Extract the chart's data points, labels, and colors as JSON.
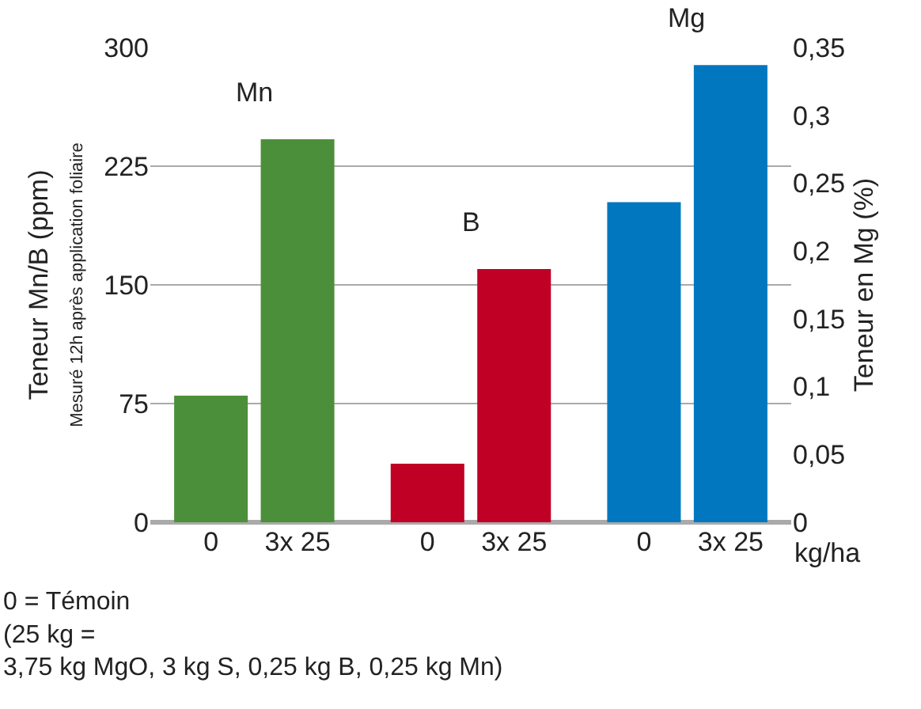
{
  "chart_data": {
    "type": "bar",
    "categories": [
      "0",
      "3x 25",
      "0",
      "3x 25",
      "0",
      "3x 25"
    ],
    "series": [
      {
        "name": "Mn",
        "color": "#4c8f3a",
        "values": [
          80,
          242,
          null,
          null,
          null,
          null
        ]
      },
      {
        "name": "B",
        "color": "#c00025",
        "values": [
          null,
          null,
          37,
          160,
          null,
          null
        ]
      },
      {
        "name": "Mg",
        "color": "#0077bf",
        "axis": "y2",
        "values": [
          null,
          null,
          null,
          null,
          0.236,
          0.337
        ]
      }
    ],
    "xlabel": "kg/ha",
    "ylabel": "Teneur Mn/B (ppm)\nMesuré 12h après application foliaire",
    "y2label": "Teneur en Mg (%)",
    "ylim": [
      0,
      300
    ],
    "yticks": [
      0,
      75,
      150,
      225,
      300
    ],
    "y2lim": [
      0,
      0.35
    ],
    "y2ticks": [
      {
        "value": 0,
        "label": "0"
      },
      {
        "value": 0.05,
        "label": "0,05"
      },
      {
        "value": 0.1,
        "label": "0,1"
      },
      {
        "value": 0.15,
        "label": "0,15"
      },
      {
        "value": 0.2,
        "label": "0,2"
      },
      {
        "value": 0.25,
        "label": "0,25"
      },
      {
        "value": 0.3,
        "label": "0,3"
      },
      {
        "value": 0.35,
        "label": "0,35"
      }
    ],
    "grid": "y",
    "legend": false,
    "annotations": [
      "0 = Témoin\n(25 kg =\n3,75 kg MgO, 3 kg S, 0,25 kg B, 0,25 kg Mn)"
    ]
  }
}
